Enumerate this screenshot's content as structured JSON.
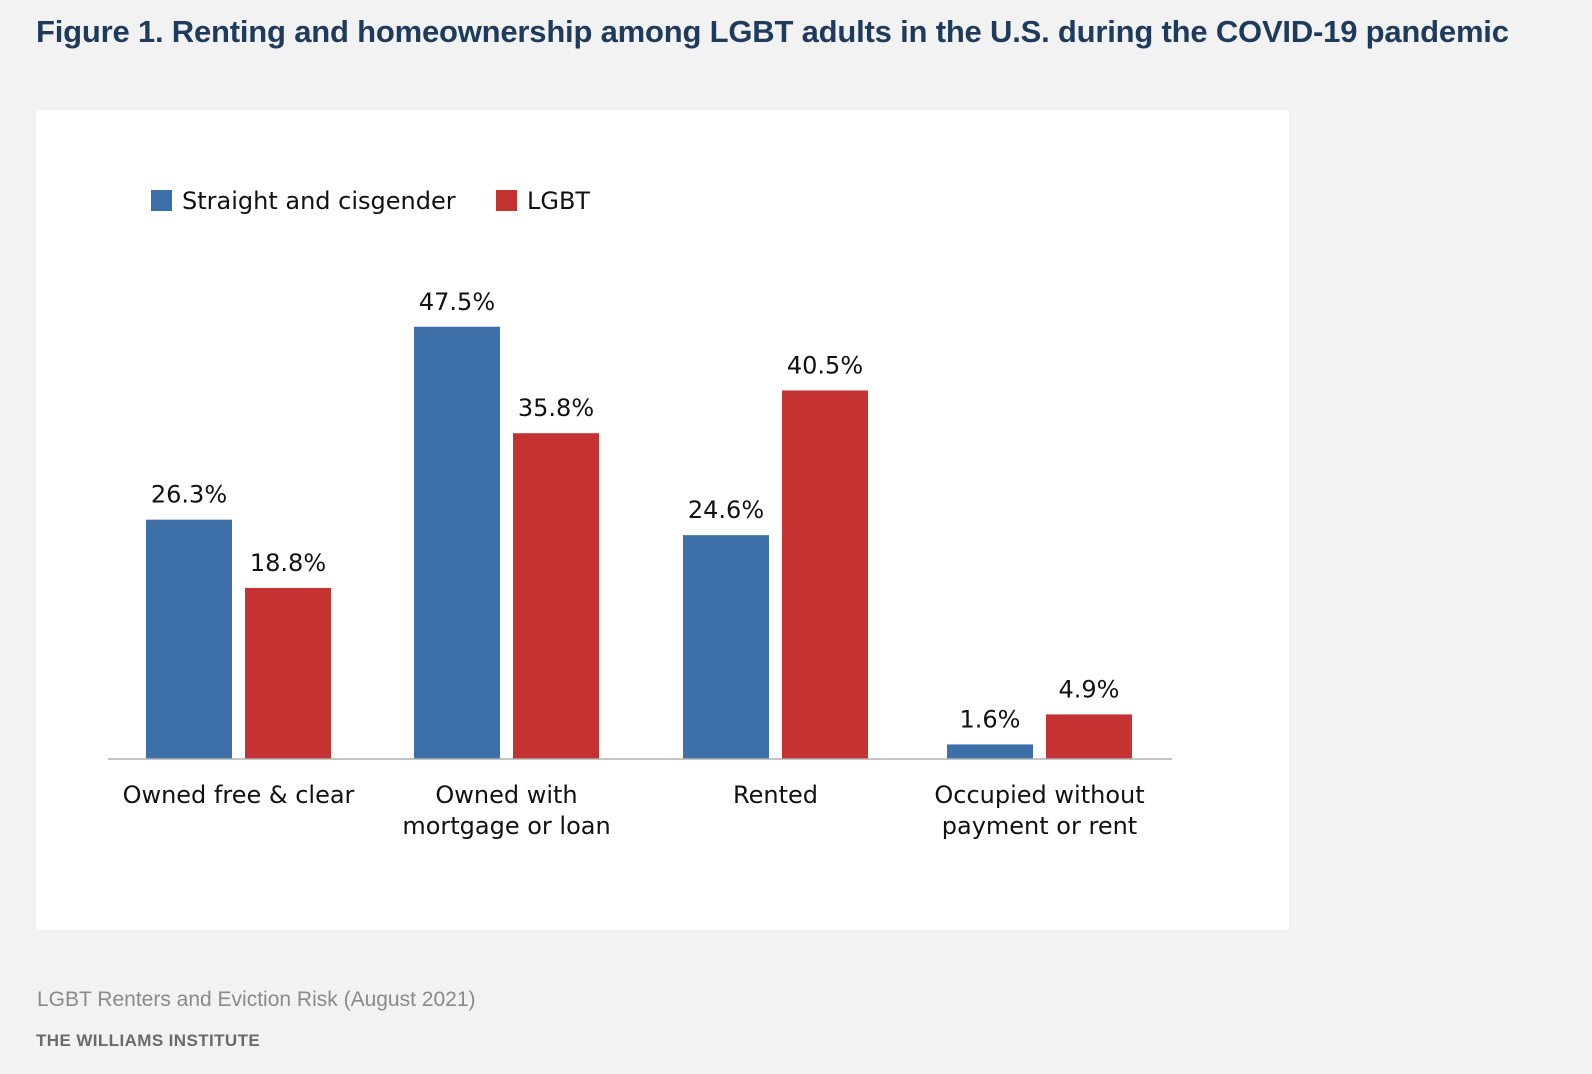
{
  "title": "Figure 1. Renting and homeownership among LGBT adults in the U.S. during the COVID-19 pandemic",
  "footer": {
    "source": "LGBT Renters and Eviction Risk (August 2021)",
    "organization": "THE WILLIAMS INSTITUTE"
  },
  "chart_data": {
    "type": "bar",
    "title": "",
    "xlabel": "",
    "ylabel": "",
    "ylim": [
      0,
      50
    ],
    "grid": false,
    "legend_position": "top-left",
    "value_suffix": "%",
    "categories": [
      [
        "Owned free & clear"
      ],
      [
        "Owned with",
        "mortgage or loan"
      ],
      [
        "Rented"
      ],
      [
        "Occupied without",
        "payment or rent"
      ]
    ],
    "series": [
      {
        "name": "Straight and cisgender",
        "color": "#3d6fa8",
        "values": [
          26.3,
          47.5,
          24.6,
          1.6
        ],
        "labels": [
          "26.3%",
          "47.5%",
          "24.6%",
          "1.6%"
        ]
      },
      {
        "name": "LGBT",
        "color": "#c43331",
        "values": [
          18.8,
          35.8,
          40.5,
          4.9
        ],
        "labels": [
          "18.8%",
          "35.8%",
          "40.5%",
          "4.9%"
        ]
      }
    ]
  }
}
